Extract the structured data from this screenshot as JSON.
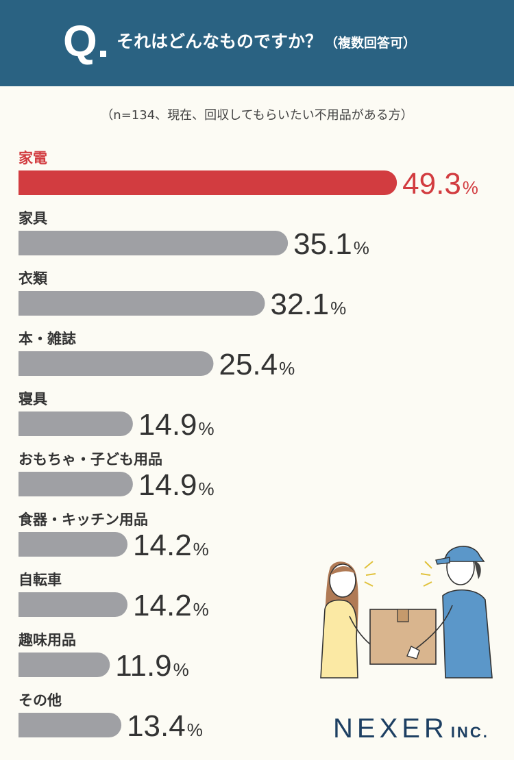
{
  "header": {
    "q_label": "Q",
    "question": "それはどんなものですか？",
    "question_sub": "（複数回答可）"
  },
  "note": "（n=134、現在、回収してもらいたい不用品がある方）",
  "colors": {
    "header_bg": "#2a6282",
    "highlight": "#d23c40",
    "bar": "#9fa0a4",
    "text": "#333333"
  },
  "chart_data": {
    "type": "bar",
    "orientation": "horizontal",
    "categories": [
      "家電",
      "家具",
      "衣類",
      "本・雑誌",
      "寝具",
      "おもちゃ・子ども用品",
      "食器・キッチン用品",
      "自転車",
      "趣味用品",
      "その他"
    ],
    "values": [
      49.3,
      35.1,
      32.1,
      25.4,
      14.9,
      14.9,
      14.2,
      14.2,
      11.9,
      13.4
    ],
    "value_labels": [
      "49.3",
      "35.1",
      "32.1",
      "25.4",
      "14.9",
      "14.9",
      "14.2",
      "14.2",
      "11.9",
      "13.4"
    ],
    "unit": "%",
    "highlight_index": 0,
    "xlim": [
      0,
      50
    ]
  },
  "logo": {
    "name": "NEXER",
    "suffix": "INC."
  }
}
